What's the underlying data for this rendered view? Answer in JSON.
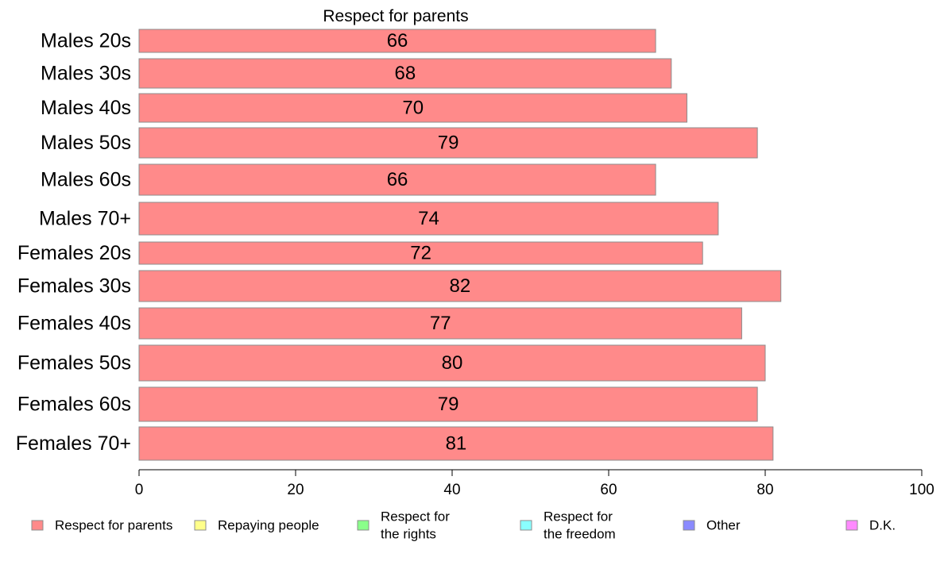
{
  "chart_data": {
    "type": "bar",
    "orientation": "horizontal",
    "title": "Respect for parents",
    "xlabel": "",
    "ylabel": "",
    "xlim": [
      0,
      100
    ],
    "xticks": [
      0,
      20,
      40,
      60,
      80,
      100
    ],
    "grid": false,
    "legend_position": "bottom",
    "categories": [
      "Males 20s",
      "Males 30s",
      "Males 40s",
      "Males 50s",
      "Males 60s",
      "Males 70+",
      "Females 20s",
      "Females 30s",
      "Females 40s",
      "Females 50s",
      "Females 60s",
      "Females 70+"
    ],
    "series": [
      {
        "name": "Respect for parents",
        "color": "#ff8a8a",
        "values": [
          66,
          68,
          70,
          79,
          66,
          74,
          72,
          82,
          77,
          80,
          79,
          81
        ],
        "labels": [
          "66",
          "68",
          "70",
          "79",
          "66",
          "74",
          "72",
          "82",
          "77",
          "80",
          "79",
          "81"
        ]
      }
    ],
    "legend": [
      {
        "lines": [
          "Respect for parents"
        ],
        "color": "#ff8a8a"
      },
      {
        "lines": [
          "Repaying people"
        ],
        "color": "#ffff8a"
      },
      {
        "lines": [
          "Respect for",
          "the rights"
        ],
        "color": "#8aff8a"
      },
      {
        "lines": [
          "Respect for",
          "the freedom"
        ],
        "color": "#8affff"
      },
      {
        "lines": [
          "Other"
        ],
        "color": "#8a8aff"
      },
      {
        "lines": [
          "D.K."
        ],
        "color": "#ff8aff"
      }
    ]
  }
}
